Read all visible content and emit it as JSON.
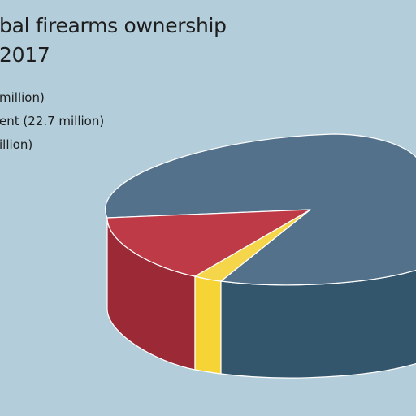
{
  "chart_data": {
    "type": "pie",
    "title_lines": [
      "bal firearms ownership",
      "2017"
    ],
    "legend": [
      {
        "text": "million)"
      },
      {
        "text": "ent (22.7 million)"
      },
      {
        "text": "illion)"
      }
    ],
    "slices": [
      {
        "value_pct": 84.5,
        "color": "#53718a",
        "side_color": "#33566d"
      },
      {
        "value_pct": 2.5,
        "color": "#f5d64b",
        "side_color": "#f7d436"
      },
      {
        "value_pct": 13.0,
        "color": "#be3a46",
        "side_color": "#9c2936"
      }
    ],
    "projection": "3d-oblique"
  }
}
